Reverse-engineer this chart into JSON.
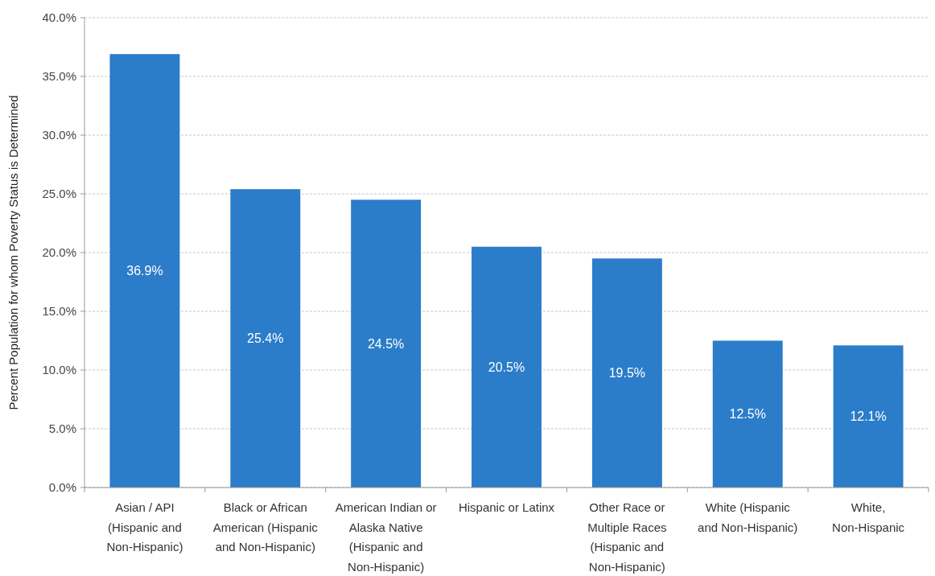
{
  "chart_data": {
    "type": "bar",
    "ylabel": "Percent Population for whom Poverty Status is Determined",
    "categories": [
      "Asian / API (Hispanic and Non-Hispanic)",
      "Black or African American (Hispanic and Non-Hispanic)",
      "American Indian or Alaska Native (Hispanic and Non-Hispanic)",
      "Hispanic or Latinx",
      "Other Race or Multiple Races (Hispanic and Non-Hispanic)",
      "White (Hispanic and Non-Hispanic)",
      "White, Non-Hispanic"
    ],
    "values": [
      36.9,
      25.4,
      24.5,
      20.5,
      19.5,
      12.5,
      12.1
    ],
    "value_labels": [
      "36.9%",
      "25.4%",
      "24.5%",
      "20.5%",
      "19.5%",
      "12.5%",
      "12.1%"
    ],
    "color": "#2b7cc9",
    "ylim": [
      0,
      40
    ],
    "yticks": [
      {
        "value": 0,
        "label": "0.0%"
      },
      {
        "value": 5,
        "label": "5.0%"
      },
      {
        "value": 10,
        "label": "10.0%"
      },
      {
        "value": 15,
        "label": "15.0%"
      },
      {
        "value": 20,
        "label": "20.0%"
      },
      {
        "value": 25,
        "label": "25.0%"
      },
      {
        "value": 30,
        "label": "30.0%"
      },
      {
        "value": 35,
        "label": "35.0%"
      },
      {
        "value": 40,
        "label": "40.0%"
      }
    ],
    "grid": "y"
  }
}
